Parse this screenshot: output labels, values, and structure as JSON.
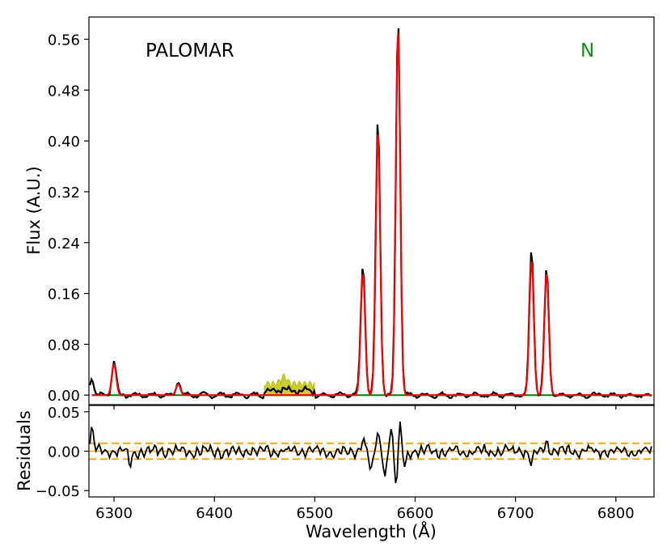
{
  "chart_data": [
    {
      "type": "line",
      "panel": "top",
      "annotations": [
        {
          "text": "PALOMAR",
          "color": "#000000"
        },
        {
          "text": "N",
          "color": "#1a8a1a"
        }
      ],
      "ylabel": "Flux (A.U.)",
      "xlim": [
        6275,
        6838
      ],
      "ylim": [
        -0.015,
        0.595
      ],
      "xticks": [
        6300,
        6400,
        6500,
        6600,
        6700,
        6800
      ],
      "yticks": [
        0.0,
        0.08,
        0.16,
        0.24,
        0.32,
        0.4,
        0.48,
        0.56
      ],
      "ytick_labels": [
        "0.00",
        "0.08",
        "0.16",
        "0.24",
        "0.32",
        "0.40",
        "0.48",
        "0.56"
      ],
      "colors": {
        "data": "#000000",
        "model": "#ff0000",
        "narrow_component": "#008000",
        "fill": "#cccc33"
      },
      "model_lines": [
        {
          "center": 6300,
          "amplitude": 0.048,
          "sigma": 2.2
        },
        {
          "center": 6364,
          "amplitude": 0.017,
          "sigma": 2.2
        },
        {
          "center": 6548,
          "amplitude": 0.19,
          "sigma": 2.2
        },
        {
          "center": 6563,
          "amplitude": 0.41,
          "sigma": 2.2
        },
        {
          "center": 6583,
          "amplitude": 0.57,
          "sigma": 2.2
        },
        {
          "center": 6716,
          "amplitude": 0.21,
          "sigma": 2.2
        },
        {
          "center": 6731,
          "amplitude": 0.19,
          "sigma": 2.2
        }
      ],
      "data_peaks": [
        {
          "x": 6278,
          "y": 0.028
        },
        {
          "x": 6300,
          "y": 0.053
        },
        {
          "x": 6364,
          "y": 0.022
        },
        {
          "x": 6548,
          "y": 0.207
        },
        {
          "x": 6563,
          "y": 0.435
        },
        {
          "x": 6583,
          "y": 0.595
        },
        {
          "x": 6716,
          "y": 0.228
        },
        {
          "x": 6731,
          "y": 0.2
        }
      ],
      "shaded_region": {
        "x": [
          6450,
          6500
        ],
        "peak_y": 0.025
      },
      "grid": false
    },
    {
      "type": "line",
      "panel": "bottom",
      "xlabel": "Wavelength (Å)",
      "ylabel": "Residuals",
      "xlim": [
        6275,
        6838
      ],
      "ylim": [
        -0.058,
        0.058
      ],
      "xticks": [
        6300,
        6400,
        6500,
        6600,
        6700,
        6800
      ],
      "yticks": [
        -0.05,
        0.0,
        0.05
      ],
      "ytick_labels": [
        "−0.05",
        "0.00",
        "0.05"
      ],
      "zero_line": {
        "y": 0.0,
        "color": "#ffa500"
      },
      "dashed_lines": [
        {
          "y": 0.01,
          "color": "#ffa500"
        },
        {
          "y": -0.01,
          "color": "#ffa500"
        }
      ],
      "features": [
        {
          "x": 6278,
          "y": 0.028
        },
        {
          "x": 6316,
          "y": -0.017
        },
        {
          "x": 6548,
          "y": 0.017
        },
        {
          "x": 6556,
          "y": -0.027
        },
        {
          "x": 6563,
          "y": 0.022
        },
        {
          "x": 6570,
          "y": -0.03
        },
        {
          "x": 6576,
          "y": 0.028
        },
        {
          "x": 6581,
          "y": -0.046
        },
        {
          "x": 6585,
          "y": 0.03
        },
        {
          "x": 6590,
          "y": -0.02
        },
        {
          "x": 6716,
          "y": -0.018
        },
        {
          "x": 6731,
          "y": 0.012
        }
      ],
      "grid": false
    }
  ]
}
